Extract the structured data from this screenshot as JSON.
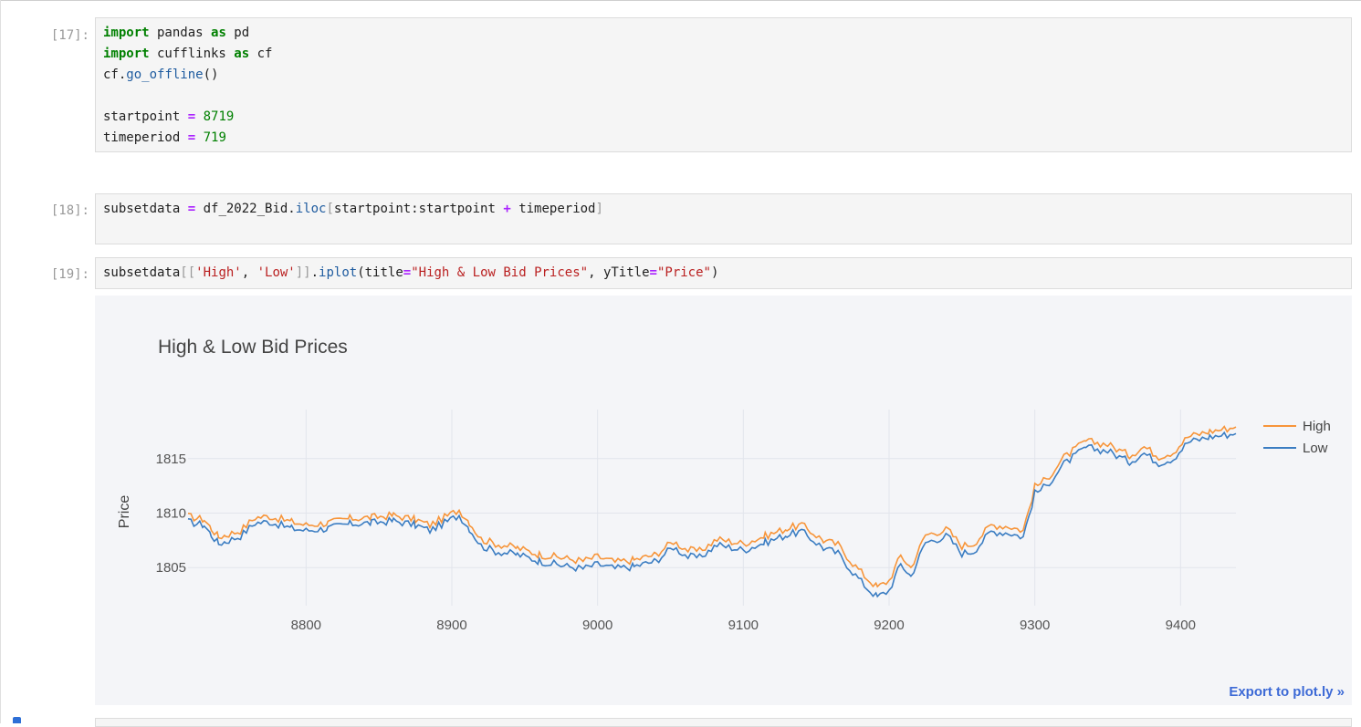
{
  "cells": [
    {
      "prompt": "[17]:",
      "lines": [
        [
          [
            "kw",
            "import"
          ],
          [
            "t",
            " pandas "
          ],
          [
            "kw",
            "as"
          ],
          [
            "t",
            " pd"
          ]
        ],
        [
          [
            "kw",
            "import"
          ],
          [
            "t",
            " cufflinks "
          ],
          [
            "kw",
            "as"
          ],
          [
            "t",
            " cf"
          ]
        ],
        [
          [
            "t",
            "cf."
          ],
          [
            "fn",
            "go_offline"
          ],
          [
            "t",
            "()"
          ]
        ],
        [],
        [
          [
            "t",
            "startpoint "
          ],
          [
            "op",
            "="
          ],
          [
            "t",
            " "
          ],
          [
            "num",
            "8719"
          ]
        ],
        [
          [
            "t",
            "timeperiod "
          ],
          [
            "op",
            "="
          ],
          [
            "t",
            " "
          ],
          [
            "num",
            "719"
          ]
        ]
      ]
    },
    {
      "prompt": "[18]:",
      "lines": [
        [
          [
            "t",
            "subsetdata "
          ],
          [
            "op",
            "="
          ],
          [
            "t",
            " df_2022_Bid."
          ],
          [
            "fn",
            "iloc"
          ],
          [
            "br",
            "["
          ],
          [
            "t",
            "startpoint:startpoint "
          ],
          [
            "op",
            "+"
          ],
          [
            "t",
            " timeperiod"
          ],
          [
            "br",
            "]"
          ]
        ]
      ]
    },
    {
      "prompt": "[19]:",
      "lines": [
        [
          [
            "t",
            "subsetdata"
          ],
          [
            "br",
            "[["
          ],
          [
            "str",
            "'High'"
          ],
          [
            "t",
            ", "
          ],
          [
            "str",
            "'Low'"
          ],
          [
            "br",
            "]]"
          ],
          [
            "t",
            "."
          ],
          [
            "fn",
            "iplot"
          ],
          [
            "t",
            "(title"
          ],
          [
            "op",
            "="
          ],
          [
            "str",
            "\"High & Low Bid Prices\""
          ],
          [
            "t",
            ", yTitle"
          ],
          [
            "op",
            "="
          ],
          [
            "str",
            "\"Price\""
          ],
          [
            "t",
            ")"
          ]
        ]
      ]
    }
  ],
  "export_label": "Export to plot.ly »",
  "chart_data": {
    "type": "line",
    "title": "High & Low Bid Prices",
    "ylabel": "Price",
    "xlabel": "",
    "xlim": [
      8719,
      9438
    ],
    "ylim": [
      1801.5,
      1819.5
    ],
    "xticks": [
      8800,
      8900,
      9000,
      9100,
      9200,
      9300,
      9400
    ],
    "yticks": [
      1805,
      1810,
      1815
    ],
    "grid": true,
    "legend_position": "right",
    "series": [
      {
        "name": "High",
        "color": "#f7953a",
        "x": [
          8719,
          8730,
          8735,
          8740,
          8745,
          8755,
          8765,
          8775,
          8790,
          8800,
          8815,
          8830,
          8845,
          8860,
          8875,
          8885,
          8895,
          8905,
          8912,
          8920,
          8930,
          8945,
          8960,
          8975,
          8990,
          9000,
          9012,
          9025,
          9040,
          9052,
          9062,
          9070,
          9082,
          9100,
          9115,
          9130,
          9140,
          9155,
          9165,
          9175,
          9185,
          9192,
          9200,
          9208,
          9215,
          9225,
          9240,
          9250,
          9258,
          9270,
          9282,
          9292,
          9300,
          9308,
          9320,
          9335,
          9350,
          9365,
          9375,
          9385,
          9395,
          9405,
          9420,
          9438
        ],
        "y": [
          1809.7,
          1809.4,
          1808.6,
          1807.8,
          1808.0,
          1808.4,
          1809.6,
          1809.7,
          1809.2,
          1808.9,
          1809.1,
          1809.5,
          1809.6,
          1809.8,
          1809.4,
          1808.9,
          1809.6,
          1810.3,
          1809.2,
          1807.6,
          1807.2,
          1806.8,
          1806.2,
          1805.9,
          1805.6,
          1806.0,
          1805.5,
          1805.7,
          1806.2,
          1807.4,
          1806.6,
          1806.5,
          1807.6,
          1807.2,
          1807.9,
          1808.6,
          1808.9,
          1807.5,
          1807.1,
          1805.4,
          1804.0,
          1803.2,
          1803.8,
          1806.1,
          1805.0,
          1808.0,
          1808.5,
          1807.0,
          1807.2,
          1808.9,
          1808.8,
          1808.4,
          1812.4,
          1813.1,
          1815.1,
          1816.6,
          1816.3,
          1815.3,
          1816.1,
          1815.2,
          1815.6,
          1817.0,
          1817.5,
          1817.9
        ]
      },
      {
        "name": "Low",
        "color": "#3b7dc2",
        "x": [
          8719,
          8730,
          8735,
          8740,
          8745,
          8755,
          8765,
          8775,
          8790,
          8800,
          8815,
          8830,
          8845,
          8860,
          8875,
          8885,
          8895,
          8905,
          8912,
          8920,
          8930,
          8945,
          8960,
          8975,
          8990,
          9000,
          9012,
          9025,
          9040,
          9052,
          9062,
          9070,
          9082,
          9100,
          9115,
          9130,
          9140,
          9155,
          9165,
          9175,
          9185,
          9192,
          9200,
          9208,
          9215,
          9225,
          9240,
          9250,
          9258,
          9270,
          9282,
          9292,
          9300,
          9308,
          9320,
          9335,
          9350,
          9365,
          9375,
          9385,
          9395,
          9405,
          9420,
          9438
        ],
        "y": [
          1809.2,
          1808.9,
          1808.0,
          1807.2,
          1807.4,
          1807.9,
          1809.1,
          1809.2,
          1808.6,
          1808.4,
          1808.6,
          1809.0,
          1809.1,
          1809.3,
          1808.9,
          1808.4,
          1809.1,
          1809.8,
          1808.6,
          1807.0,
          1806.5,
          1806.2,
          1805.6,
          1805.2,
          1804.9,
          1805.3,
          1804.9,
          1805.1,
          1805.6,
          1806.9,
          1806.0,
          1805.9,
          1807.1,
          1806.6,
          1807.3,
          1808.0,
          1808.3,
          1806.8,
          1806.3,
          1804.6,
          1803.1,
          1802.3,
          1802.9,
          1805.3,
          1804.2,
          1807.3,
          1807.9,
          1806.3,
          1806.5,
          1808.3,
          1808.2,
          1807.8,
          1811.8,
          1812.5,
          1814.5,
          1816.0,
          1815.7,
          1814.7,
          1815.5,
          1814.6,
          1815.0,
          1816.5,
          1817.0,
          1817.3
        ]
      }
    ]
  }
}
